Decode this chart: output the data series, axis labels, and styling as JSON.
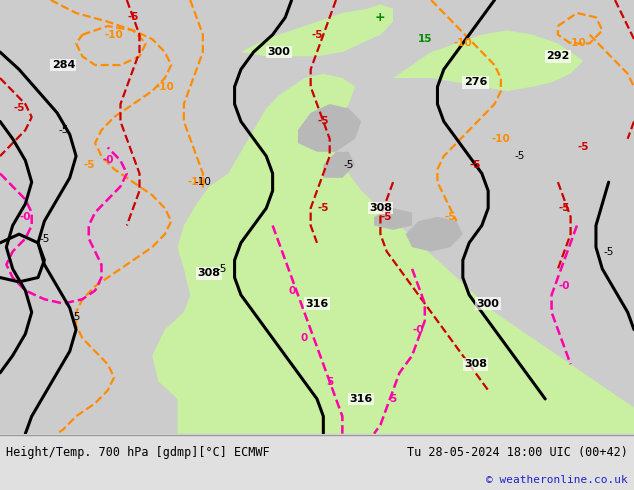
{
  "title_left": "Height/Temp. 700 hPa [gdmp][°C] ECMWF",
  "title_right": "Tu 28-05-2024 18:00 UIC (00+42)",
  "copyright": "© weatheronline.co.uk",
  "bg_color": "#cccccc",
  "land_color": "#c8c8c8",
  "green_color": "#c8f0a0",
  "footer_color": "#e0e0e0",
  "black_lw": 2.2,
  "orange_lw": 1.6,
  "red_lw": 1.6,
  "pink_lw": 1.8
}
